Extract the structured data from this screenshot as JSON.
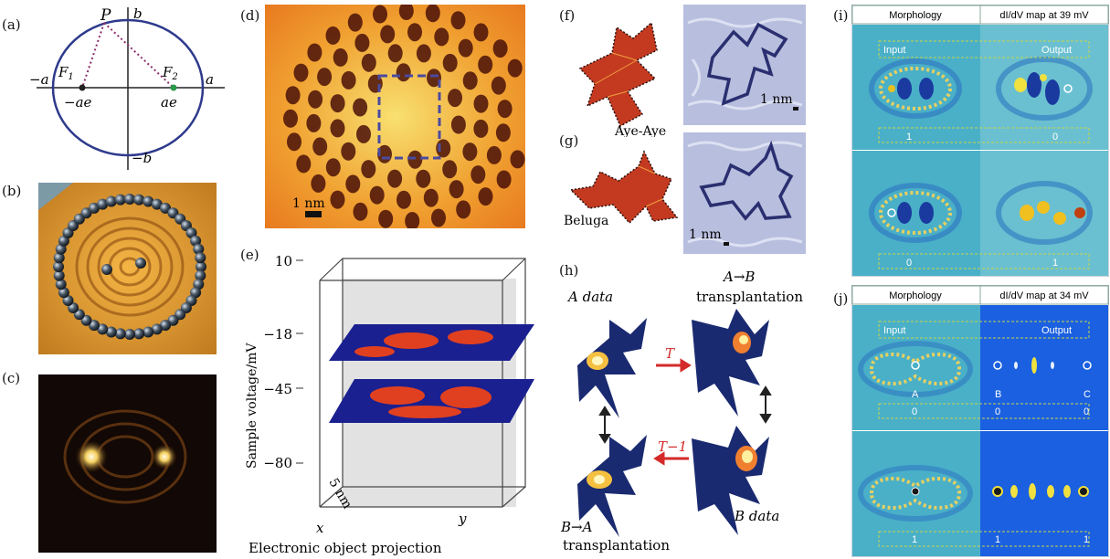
{
  "panels": {
    "a": {
      "tag": "(a)",
      "P": "P",
      "b": "b",
      "neg_b": "−b",
      "neg_a": "−a",
      "a": "a",
      "F1": "F",
      "F1_sub": "1",
      "F2": "F",
      "F2_sub": "2",
      "neg_ae": "−ae",
      "ae": "ae"
    },
    "b": {
      "tag": "(b)"
    },
    "c": {
      "tag": "(c)"
    },
    "d": {
      "tag": "(d)",
      "scale": "1 nm"
    },
    "e": {
      "tag": "(e)",
      "ylabel": "Sample voltage/mV",
      "ticks": [
        "10",
        "−18",
        "−45",
        "−80"
      ],
      "x_axis": "x",
      "y_axis": "y",
      "size": "5 nm",
      "caption": "Electronic object projection"
    },
    "f": {
      "tag": "(f)",
      "name": "Aye-Aye",
      "scale": "1 nm"
    },
    "g": {
      "tag": "(g)",
      "name": "Beluga",
      "scale": "1 nm"
    },
    "h": {
      "tag": "(h)",
      "a_data": "A data",
      "b_data": "B data",
      "ab_line1": "A→B",
      "ab_line2": "transplantation",
      "ba_line1": "B→A",
      "ba_line2": "transplantation",
      "T": "T",
      "T_inv": "T−1"
    },
    "i": {
      "tag": "(i)",
      "header_left": "Morphology",
      "header_right": "dI/dV map at 39 mV",
      "input": "Input",
      "output": "Output",
      "vals_top": [
        "1",
        "0"
      ],
      "vals_bottom": [
        "0",
        "1"
      ]
    },
    "j": {
      "tag": "(j)",
      "header_left": "Morphology",
      "header_right": "dI/dV map at 34 mV",
      "input": "Input",
      "output": "Output",
      "letters": [
        "A",
        "B",
        "C"
      ],
      "vals_top": [
        "0",
        "0",
        "0"
      ],
      "vals_bottom": [
        "1",
        "1",
        "1"
      ]
    }
  },
  "colors": {
    "ellipse": "#2e3a8c",
    "dotted": "#8a2a6a",
    "arrow": "#d42a2a",
    "highlight": "#c8d44a"
  }
}
